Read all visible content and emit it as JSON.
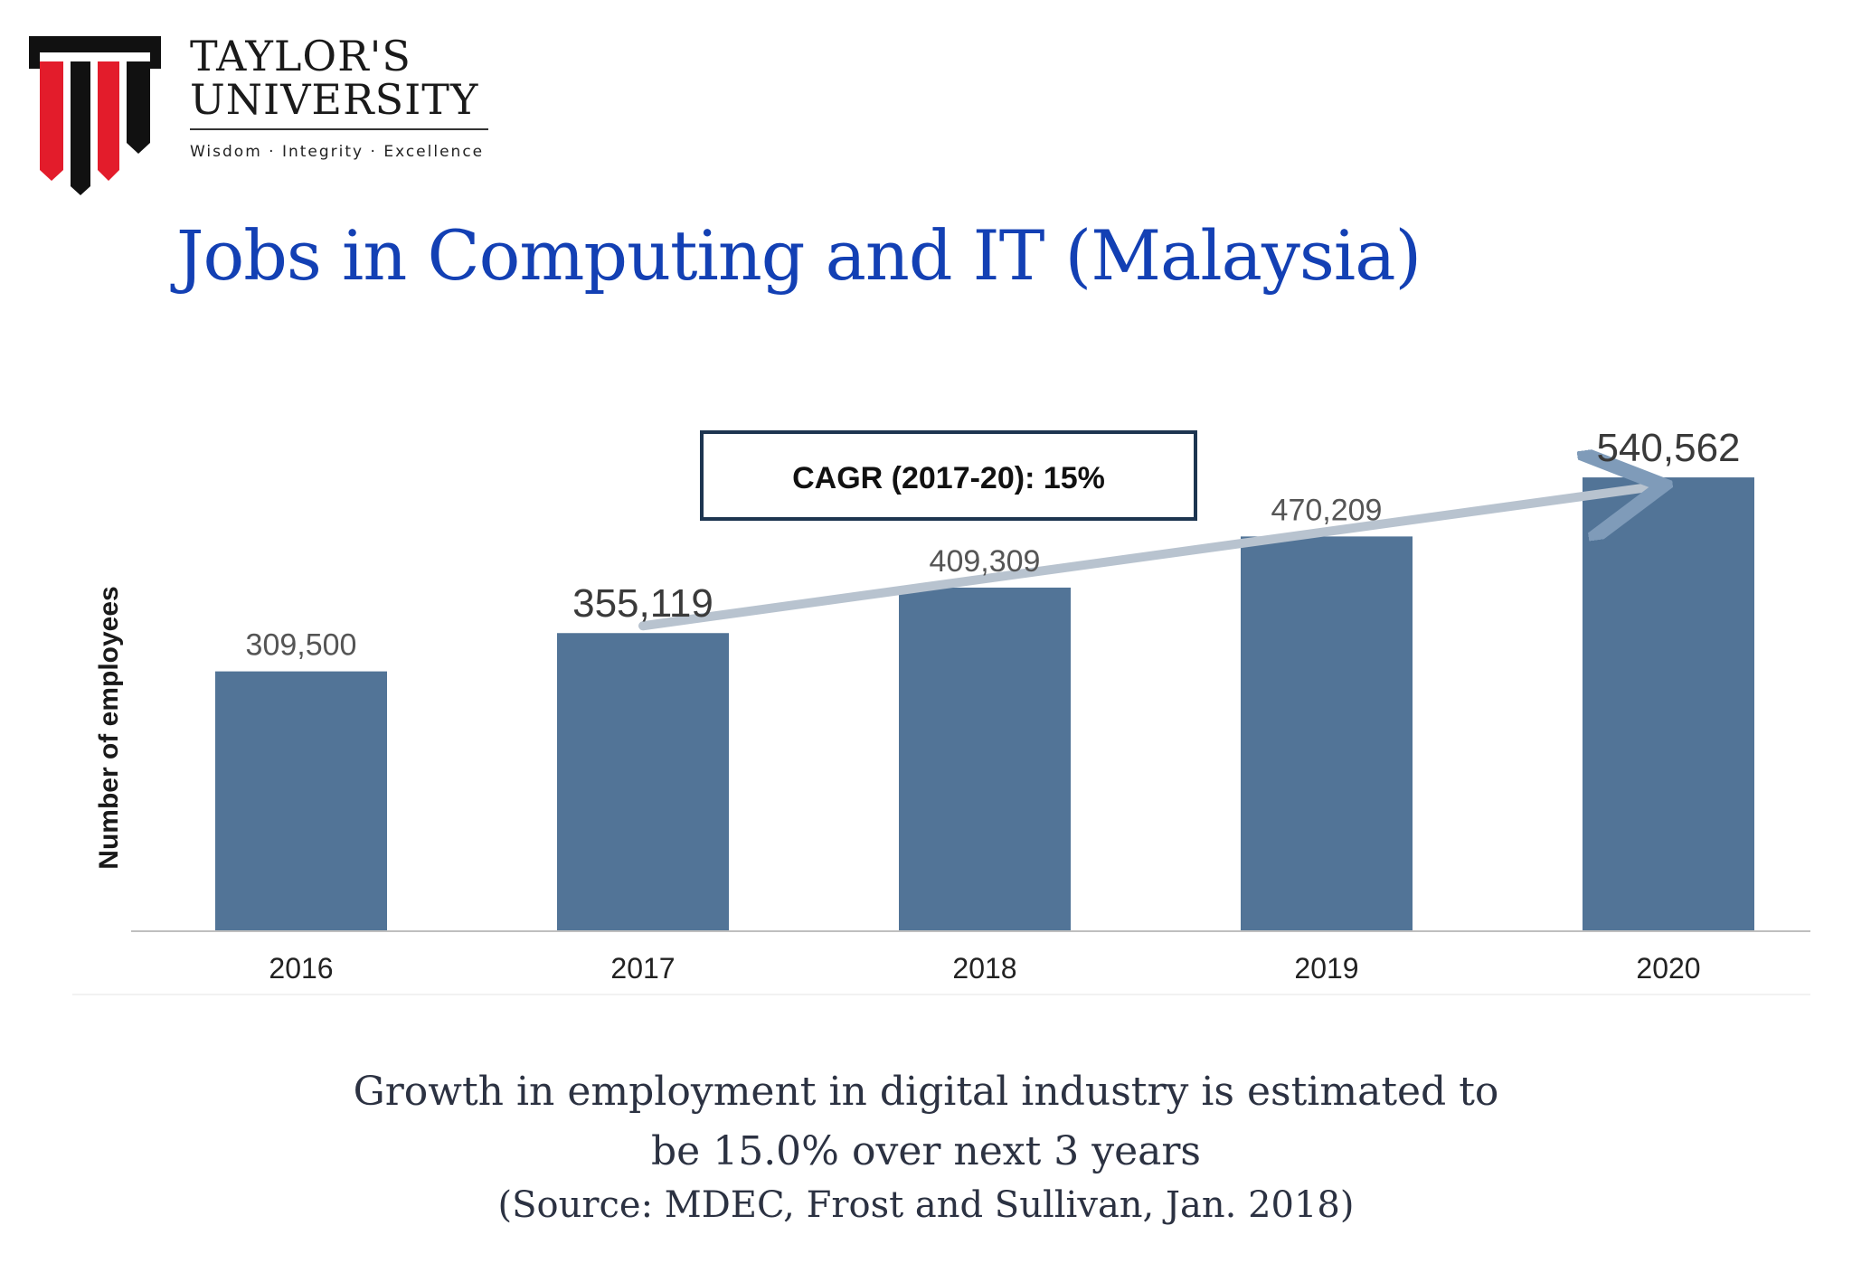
{
  "logo": {
    "name_line1": "TAYLOR'S",
    "name_line2": "UNIVERSITY",
    "tagline": "Wisdom · Integrity · Excellence",
    "colors": {
      "black": "#111111",
      "red": "#e31c2b"
    }
  },
  "title": "Jobs in Computing and IT (Malaysia)",
  "chart_data": {
    "type": "bar",
    "categories": [
      "2016",
      "2017",
      "2018",
      "2019",
      "2020"
    ],
    "values": [
      309500,
      355119,
      409309,
      470209,
      540562
    ],
    "value_labels": [
      "309,500",
      "355,119",
      "409,309",
      "470,209",
      "540,562"
    ],
    "ylabel": "Number of employees",
    "xlabel": "",
    "annotation": "CAGR (2017-20): 15%",
    "trend_arrow": {
      "from": "2017",
      "to": "2020"
    },
    "ylim": [
      0,
      560000
    ],
    "grid": false,
    "bar_color": "#527497",
    "arrow_color": "#b8c3cf"
  },
  "caption": {
    "line1": "Growth in employment in digital industry is estimated to",
    "line2": "be 15.0% over next 3 years",
    "line3": "(Source: MDEC, Frost and Sullivan, Jan. 2018)"
  }
}
